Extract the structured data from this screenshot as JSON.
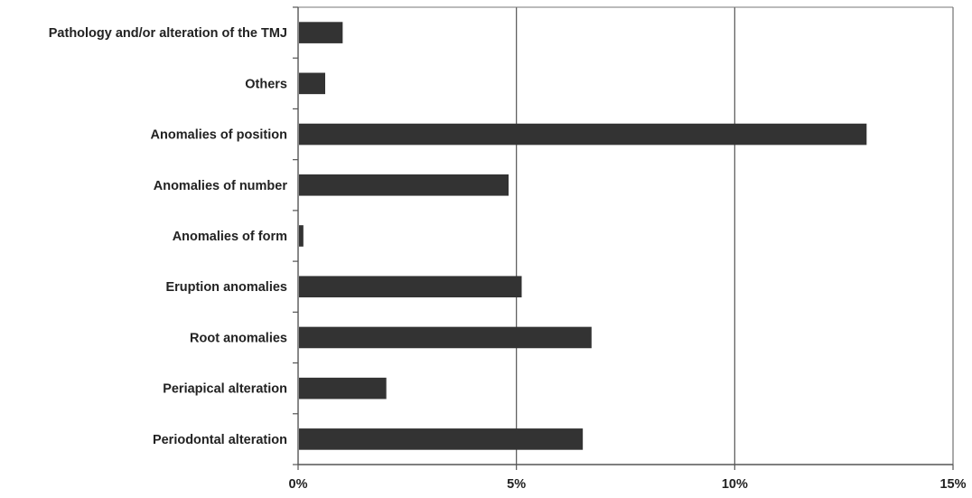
{
  "chart_data": {
    "type": "bar",
    "orientation": "horizontal",
    "categories": [
      "Pathology and/or alteration of the TMJ",
      "Others",
      "Anomalies of position",
      "Anomalies of number",
      "Anomalies of form",
      "Eruption anomalies",
      "Root anomalies",
      "Periapical alteration",
      "Periodontal alteration"
    ],
    "values": [
      1.0,
      0.6,
      13.0,
      4.8,
      0.1,
      5.1,
      6.7,
      2.0,
      6.5
    ],
    "xlim": [
      0,
      15
    ],
    "xticks": [
      0,
      5,
      10,
      15
    ],
    "xtick_labels": [
      "0%",
      "5%",
      "10%",
      "15%"
    ],
    "grid": "vertical",
    "legend": "none",
    "bar_color": "#333333"
  }
}
